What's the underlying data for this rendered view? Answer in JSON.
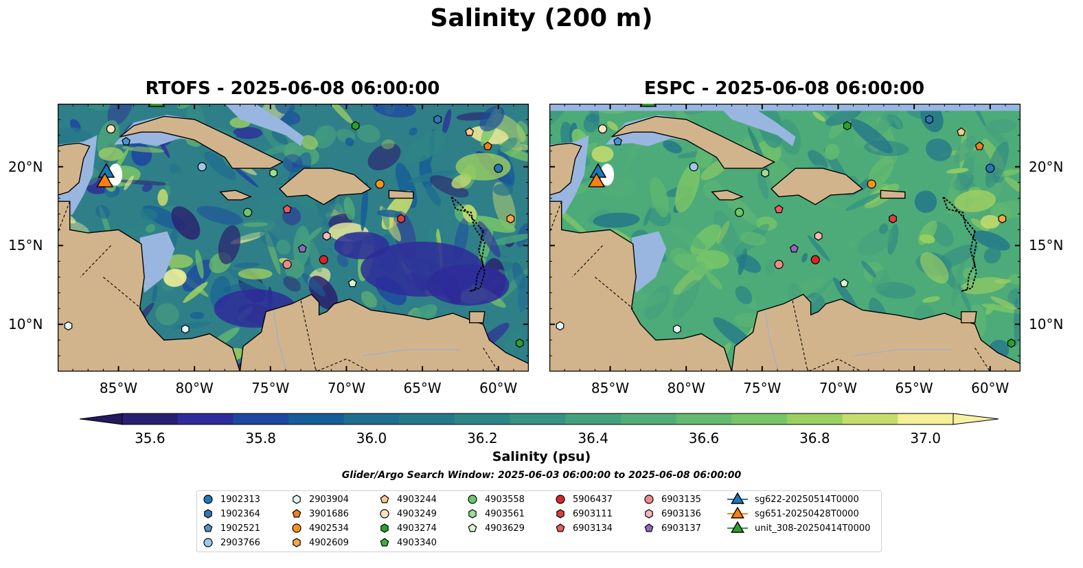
{
  "title": "Salinity (200 m)",
  "panels": [
    {
      "title": "RTOFS - 2025-06-08 06:00:00",
      "model": "rtofs"
    },
    {
      "title": "ESPC - 2025-06-08 06:00:00",
      "model": "espc"
    }
  ],
  "lon_ticks": [
    "85°W",
    "80°W",
    "75°W",
    "70°W",
    "65°W",
    "60°W"
  ],
  "lat_ticks": [
    "20°N",
    "15°N",
    "10°N"
  ],
  "colorbar": {
    "ticks": [
      "35.6",
      "35.8",
      "36.0",
      "36.2",
      "36.4",
      "36.6",
      "36.8",
      "37.0"
    ],
    "label": "Salinity (psu)",
    "colors": [
      "#2a1f6f",
      "#2e2b9a",
      "#1d47a0",
      "#175d97",
      "#1f6e8e",
      "#257889",
      "#2d8585",
      "#379282",
      "#45a07e",
      "#53ad78",
      "#63ba70",
      "#78c567",
      "#9ccf62",
      "#c8dc6e",
      "#f4f09a"
    ],
    "colors_extend_low": "#25185e",
    "colors_extend_high": "#f7f1a3"
  },
  "search_window": "Glider/Argo Search Window: 2025-06-03 06:00:00 to 2025-06-08 06:00:00",
  "colors": {
    "land": "#d2b48c",
    "shallow": "#99b6e0",
    "deep_pacific": "#281c6c"
  },
  "legend": [
    {
      "label": "1902313",
      "marker": "circle",
      "color": "#1f77b4"
    },
    {
      "label": "1902364",
      "marker": "hexagon",
      "color": "#2f78b8"
    },
    {
      "label": "1902521",
      "marker": "pentagon",
      "color": "#4c93cf"
    },
    {
      "label": "2903766",
      "marker": "circle",
      "color": "#9ec8ea"
    },
    {
      "label": "2903904",
      "marker": "hexagon",
      "color": "#e6f4fb"
    },
    {
      "label": "3901686",
      "marker": "pentagon",
      "color": "#f07f1c"
    },
    {
      "label": "4902534",
      "marker": "circle",
      "color": "#f6921e"
    },
    {
      "label": "4902609",
      "marker": "hexagon",
      "color": "#f7a64a"
    },
    {
      "label": "4903244",
      "marker": "pentagon",
      "color": "#f9c98e"
    },
    {
      "label": "4903249",
      "marker": "circle",
      "color": "#fde2c0"
    },
    {
      "label": "4903274",
      "marker": "hexagon",
      "color": "#2ca02c"
    },
    {
      "label": "4903340",
      "marker": "pentagon",
      "color": "#3eae3e"
    },
    {
      "label": "4903558",
      "marker": "circle",
      "color": "#6cc66c"
    },
    {
      "label": "4903561",
      "marker": "hexagon",
      "color": "#9fdc8f"
    },
    {
      "label": "4903629",
      "marker": "pentagon",
      "color": "#d8f5cf"
    },
    {
      "label": "5906437",
      "marker": "circle",
      "color": "#d62728"
    },
    {
      "label": "6903111",
      "marker": "hexagon",
      "color": "#dd3e43"
    },
    {
      "label": "6903134",
      "marker": "pentagon",
      "color": "#eb5a63"
    },
    {
      "label": "6903135",
      "marker": "circle",
      "color": "#ef8a8a"
    },
    {
      "label": "6903136",
      "marker": "hexagon",
      "color": "#f6b8b8"
    },
    {
      "label": "6903137",
      "marker": "pentagon",
      "color": "#9467bd"
    },
    {
      "label": "sg622-20250514T0000",
      "marker": "triangle",
      "color": "#1f77b4"
    },
    {
      "label": "sg651-20250428T0000",
      "marker": "triangle",
      "color": "#ff7f0e"
    },
    {
      "label": "unit_308-20250414T0000",
      "marker": "triangle",
      "color": "#2ca02c"
    }
  ],
  "observations": [
    {
      "id": "1902313",
      "lon": -60.0,
      "lat": 19.9
    },
    {
      "id": "1902364",
      "lon": -64.0,
      "lat": 23.0
    },
    {
      "id": "1902521",
      "lon": -84.5,
      "lat": 21.6
    },
    {
      "id": "2903766",
      "lon": -79.5,
      "lat": 20.0
    },
    {
      "id": "2903904",
      "lon": -88.3,
      "lat": 9.9
    },
    {
      "id": "2903904",
      "lon": -80.6,
      "lat": 9.7
    },
    {
      "id": "3901686",
      "lon": -60.7,
      "lat": 21.3
    },
    {
      "id": "4902534",
      "lon": -67.8,
      "lat": 18.9
    },
    {
      "id": "4902609",
      "lon": -59.2,
      "lat": 16.7
    },
    {
      "id": "4903244",
      "lon": -61.9,
      "lat": 22.2
    },
    {
      "id": "4903249",
      "lon": -85.5,
      "lat": 22.4
    },
    {
      "id": "4903274",
      "lon": -69.4,
      "lat": 22.6
    },
    {
      "id": "4903274",
      "lon": -58.6,
      "lat": 8.8
    },
    {
      "id": "4903558",
      "lon": -76.5,
      "lat": 17.1
    },
    {
      "id": "4903561",
      "lon": -74.8,
      "lat": 19.6
    },
    {
      "id": "4903629",
      "lon": -69.6,
      "lat": 12.6
    },
    {
      "id": "5906437",
      "lon": -71.5,
      "lat": 14.1
    },
    {
      "id": "6903111",
      "lon": -66.4,
      "lat": 16.7
    },
    {
      "id": "6903134",
      "lon": -73.9,
      "lat": 17.3
    },
    {
      "id": "6903135",
      "lon": -73.9,
      "lat": 13.8
    },
    {
      "id": "6903136",
      "lon": -71.3,
      "lat": 15.6
    },
    {
      "id": "6903137",
      "lon": -72.9,
      "lat": 14.8
    },
    {
      "id": "sg622-20250514T0000",
      "lon": -85.8,
      "lat": 19.7
    },
    {
      "id": "sg651-20250428T0000",
      "lon": -85.9,
      "lat": 19.1
    },
    {
      "id": "unit_308-20250414T0000",
      "lon": -82.5,
      "lat": 24.2
    }
  ]
}
